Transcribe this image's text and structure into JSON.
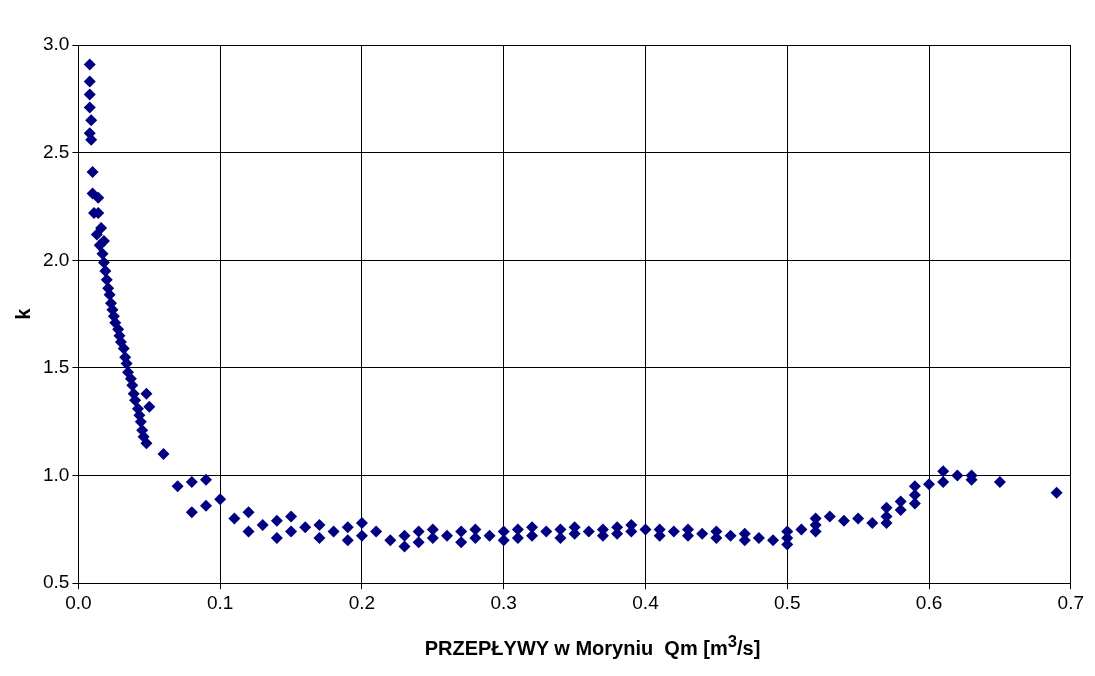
{
  "chart_data": {
    "type": "scatter",
    "xlabel": "PRZEPŁYWY w Moryniu  Qm [m$^{3}$/s]",
    "ylabel": "k",
    "xlim": [
      0,
      0.7
    ],
    "ylim": [
      0.5,
      3
    ],
    "xticks": [
      {
        "value": 0,
        "label": "0.0"
      },
      0.1,
      0.2,
      0.3,
      0.4,
      0.5,
      0.6,
      0.7
    ],
    "yticks": [
      0.5,
      {
        "value": 1,
        "label": "1.0"
      },
      1.5,
      {
        "value": 2,
        "label": "2.0"
      },
      2.5,
      {
        "value": 3,
        "label": "3.0"
      }
    ],
    "grid": true,
    "legend": false,
    "marker": "diamond",
    "series": [
      {
        "color": "#000080",
        "x": [
          0.008,
          0.008,
          0.008,
          0.008,
          0.009,
          0.008,
          0.009,
          0.01,
          0.01,
          0.014,
          0.011,
          0.014,
          0.016,
          0.013,
          0.015,
          0.018,
          0.017,
          0.018,
          0.019,
          0.02,
          0.021,
          0.022,
          0.023,
          0.024,
          0.025,
          0.026,
          0.028,
          0.029,
          0.03,
          0.032,
          0.033,
          0.034,
          0.035,
          0.037,
          0.038,
          0.039,
          0.04,
          0.042,
          0.043,
          0.044,
          0.045,
          0.046,
          0.048,
          0.048,
          0.05,
          0.06,
          0.07,
          0.08,
          0.09,
          0.08,
          0.09,
          0.1,
          0.11,
          0.12,
          0.12,
          0.13,
          0.14,
          0.14,
          0.15,
          0.15,
          0.16,
          0.17,
          0.17,
          0.18,
          0.19,
          0.19,
          0.2,
          0.2,
          0.21,
          0.22,
          0.23,
          0.23,
          0.24,
          0.24,
          0.25,
          0.25,
          0.26,
          0.27,
          0.27,
          0.28,
          0.28,
          0.29,
          0.3,
          0.3,
          0.31,
          0.31,
          0.32,
          0.32,
          0.33,
          0.34,
          0.34,
          0.35,
          0.35,
          0.36,
          0.37,
          0.37,
          0.38,
          0.38,
          0.39,
          0.39,
          0.4,
          0.41,
          0.41,
          0.42,
          0.43,
          0.43,
          0.44,
          0.45,
          0.45,
          0.46,
          0.47,
          0.47,
          0.48,
          0.49,
          0.5,
          0.5,
          0.5,
          0.51,
          0.52,
          0.52,
          0.52,
          0.53,
          0.54,
          0.55,
          0.56,
          0.57,
          0.57,
          0.57,
          0.58,
          0.58,
          0.59,
          0.59,
          0.59,
          0.6,
          0.61,
          0.61,
          0.62,
          0.63,
          0.63,
          0.65,
          0.69
        ],
        "values": [
          2.91,
          2.83,
          2.77,
          2.71,
          2.65,
          2.59,
          2.56,
          2.41,
          2.31,
          2.29,
          2.22,
          2.22,
          2.15,
          2.12,
          2.07,
          2.09,
          2.03,
          1.99,
          1.95,
          1.91,
          1.87,
          1.84,
          1.8,
          1.77,
          1.74,
          1.71,
          1.68,
          1.65,
          1.62,
          1.59,
          1.55,
          1.52,
          1.48,
          1.45,
          1.42,
          1.38,
          1.35,
          1.31,
          1.28,
          1.25,
          1.21,
          1.18,
          1.15,
          1.38,
          1.32,
          1.1,
          0.95,
          0.97,
          0.98,
          0.83,
          0.86,
          0.89,
          0.8,
          0.83,
          0.74,
          0.77,
          0.79,
          0.71,
          0.81,
          0.74,
          0.76,
          0.77,
          0.71,
          0.74,
          0.76,
          0.7,
          0.78,
          0.72,
          0.74,
          0.7,
          0.72,
          0.67,
          0.74,
          0.69,
          0.75,
          0.71,
          0.72,
          0.74,
          0.69,
          0.75,
          0.71,
          0.72,
          0.74,
          0.7,
          0.75,
          0.71,
          0.76,
          0.72,
          0.74,
          0.75,
          0.71,
          0.76,
          0.73,
          0.74,
          0.75,
          0.72,
          0.76,
          0.73,
          0.77,
          0.74,
          0.75,
          0.75,
          0.72,
          0.74,
          0.75,
          0.72,
          0.73,
          0.74,
          0.71,
          0.72,
          0.73,
          0.7,
          0.71,
          0.7,
          0.74,
          0.71,
          0.68,
          0.75,
          0.8,
          0.77,
          0.74,
          0.81,
          0.79,
          0.8,
          0.78,
          0.85,
          0.81,
          0.78,
          0.88,
          0.84,
          0.95,
          0.91,
          0.87,
          0.96,
          1.02,
          0.97,
          1.0,
          1.0,
          0.98,
          0.97,
          0.92
        ]
      }
    ]
  }
}
